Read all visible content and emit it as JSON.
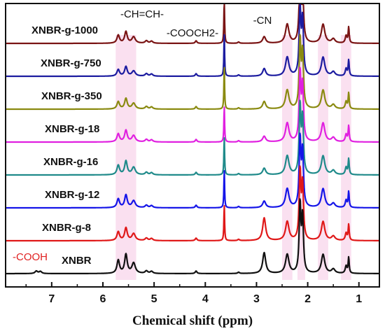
{
  "chart_data": {
    "type": "line",
    "title": "",
    "xlabel": "Chemical shift (ppm)",
    "ylabel": "",
    "x_reversed": true,
    "xlim": [
      7.9,
      0.6
    ],
    "x_ticks": [
      "7",
      "6",
      "5",
      "4",
      "3",
      "2",
      "1"
    ],
    "x_tick_values": [
      7,
      6,
      5,
      4,
      3,
      2,
      1
    ],
    "y_ticks_shown": false,
    "legend": "none",
    "series_labels_placement": "left, above each trace",
    "series": [
      {
        "name": "XNBR-g-1000",
        "color": "#7a1414",
        "ch_height": 0.55,
        "cn_height": 0.35,
        "cooch2_height": 1.0
      },
      {
        "name": "XNBR-g-750",
        "color": "#1c1ca0",
        "ch_height": 0.45,
        "cn_height": 0.4,
        "cooch2_height": 0.95
      },
      {
        "name": "XNBR-g-350",
        "color": "#8a8a10",
        "ch_height": 0.5,
        "cn_height": 0.4,
        "cooch2_height": 0.95
      },
      {
        "name": "XNBR-g-18",
        "color": "#e020e0",
        "ch_height": 0.55,
        "cn_height": 0.3,
        "cooch2_height": 0.8
      },
      {
        "name": "XNBR-g-16",
        "color": "#1f8a8a",
        "ch_height": 0.65,
        "cn_height": 0.35,
        "cooch2_height": 0.85
      },
      {
        "name": "XNBR-g-12",
        "color": "#1515e8",
        "ch_height": 0.6,
        "cn_height": 0.35,
        "cooch2_height": 0.85
      },
      {
        "name": "XNBR-g-8",
        "color": "#e01818",
        "ch_height": 0.6,
        "cn_height": 1.2,
        "cooch2_height": 0.8
      },
      {
        "name": "XNBR",
        "color": "#111111",
        "ch_height": 0.9,
        "cn_height": 1.1,
        "cooch2_height": 0.0
      }
    ],
    "peaks_ppm": {
      "cooh": 7.3,
      "ch_eq_ch": [
        5.7,
        5.55,
        5.4
      ],
      "cooch2": 3.63,
      "cn": [
        2.85,
        2.4
      ],
      "ch2": [
        2.15,
        2.1
      ],
      "ch3": [
        1.7,
        1.25,
        1.2
      ]
    },
    "annotations": [
      {
        "text": "-CH=CH-",
        "ppm": 5.5
      },
      {
        "text": "-COOCH2-",
        "ppm": 4.2
      },
      {
        "text": "-CN",
        "ppm": 2.8
      },
      {
        "text": "-COOH",
        "ppm": 7.3,
        "color": "#e02020"
      }
    ],
    "highlight_regions_ppm": [
      [
        5.75,
        5.35
      ],
      [
        2.5,
        2.3
      ],
      [
        2.2,
        2.05
      ],
      [
        1.8,
        1.6
      ],
      [
        1.35,
        1.15
      ]
    ],
    "highlight_color": "#f6c6e3"
  }
}
